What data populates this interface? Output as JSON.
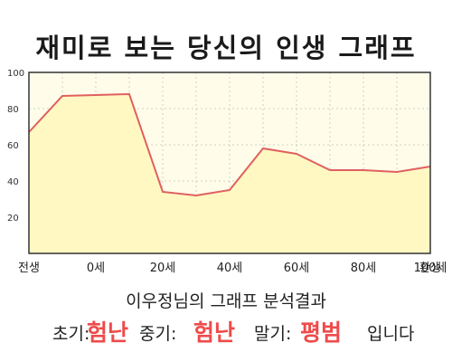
{
  "chart_data": {
    "type": "area",
    "title": "재미로 보는 당신의 인생 그래프",
    "x_ticks": [
      "전생",
      "0세",
      "20세",
      "40세",
      "60세",
      "80세",
      "100세",
      "환생"
    ],
    "y_ticks": [
      "20",
      "40",
      "60",
      "80",
      "100"
    ],
    "ylim": [
      0,
      100
    ],
    "grid": true,
    "series": [
      {
        "x": [
          "전생",
          "0세",
          "10세",
          "20세",
          "30세",
          "40세",
          "50세",
          "60세",
          "70세",
          "80세",
          "90세",
          "100세",
          "환생"
        ],
        "values": [
          67,
          87,
          87.5,
          88,
          34,
          32,
          35,
          58,
          55,
          46,
          46,
          45,
          48
        ]
      }
    ],
    "colors": {
      "line": "#e06060",
      "fill": "#fff8c2",
      "plot_bg": "#fffdea",
      "grid": "#cfcfc4"
    }
  },
  "result": {
    "summary": "이우정님의 그래프 분석결과",
    "early_label": "초기:",
    "early_value": "험난",
    "mid_label": "중기:",
    "mid_value": "험난",
    "late_label": "말기:",
    "late_value": "평범",
    "ending": "입니다"
  }
}
